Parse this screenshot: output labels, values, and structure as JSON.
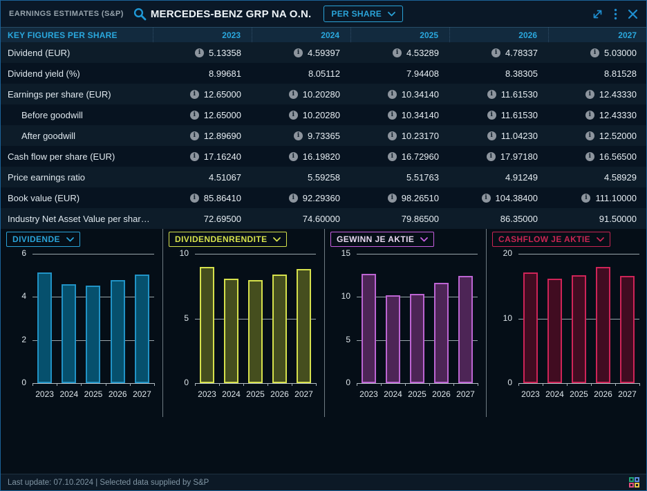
{
  "header": {
    "widget_title": "EARNINGS ESTIMATES (S&P)",
    "instrument": "MERCEDES-BENZ GRP NA O.N.",
    "view_selector": "PER SHARE"
  },
  "table": {
    "header_label": "KEY FIGURES PER SHARE",
    "years": [
      "2023",
      "2024",
      "2025",
      "2026",
      "2027"
    ],
    "rows": [
      {
        "label": "Dividend (EUR)",
        "indent": false,
        "info": true,
        "values": [
          "5.13358",
          "4.59397",
          "4.53289",
          "4.78337",
          "5.03000"
        ]
      },
      {
        "label": "Dividend yield (%)",
        "indent": false,
        "info": false,
        "values": [
          "8.99681",
          "8.05112",
          "7.94408",
          "8.38305",
          "8.81528"
        ]
      },
      {
        "label": "Earnings per share (EUR)",
        "indent": false,
        "info": true,
        "values": [
          "12.65000",
          "10.20280",
          "10.34140",
          "11.61530",
          "12.43330"
        ]
      },
      {
        "label": "Before goodwill",
        "indent": true,
        "info": true,
        "values": [
          "12.65000",
          "10.20280",
          "10.34140",
          "11.61530",
          "12.43330"
        ]
      },
      {
        "label": "After goodwill",
        "indent": true,
        "info": true,
        "values": [
          "12.89690",
          "9.73365",
          "10.23170",
          "11.04230",
          "12.52000"
        ]
      },
      {
        "label": "Cash flow per share (EUR)",
        "indent": false,
        "info": true,
        "values": [
          "17.16240",
          "16.19820",
          "16.72960",
          "17.97180",
          "16.56500"
        ]
      },
      {
        "label": "Price earnings ratio",
        "indent": false,
        "info": false,
        "values": [
          "4.51067",
          "5.59258",
          "5.51763",
          "4.91249",
          "4.58929"
        ]
      },
      {
        "label": "Book value (EUR)",
        "indent": false,
        "info": true,
        "values": [
          "85.86410",
          "92.29360",
          "98.26510",
          "104.38400",
          "111.10000"
        ]
      },
      {
        "label": "Industry Net Asset Value per shar…",
        "indent": false,
        "info": false,
        "values": [
          "72.69500",
          "74.60000",
          "79.86500",
          "86.35000",
          "91.50000"
        ]
      }
    ]
  },
  "chart_data": [
    {
      "type": "bar",
      "title": "DIVIDENDE",
      "categories": [
        "2023",
        "2024",
        "2025",
        "2026",
        "2027"
      ],
      "values": [
        5.13358,
        4.59397,
        4.53289,
        4.78337,
        5.03
      ],
      "ylim": [
        0,
        6
      ],
      "yticks": [
        0,
        2,
        4,
        6
      ],
      "accent": "#2aa3d8",
      "text_color": "#2aa3d8",
      "bar_fill": "#06506d",
      "bar_stroke": "#2193c6",
      "grid": true,
      "legend": "none"
    },
    {
      "type": "bar",
      "title": "DIVIDENDENRENDITE",
      "categories": [
        "2023",
        "2024",
        "2025",
        "2026",
        "2027"
      ],
      "values": [
        8.99681,
        8.05112,
        7.94408,
        8.38305,
        8.81528
      ],
      "ylim": [
        0,
        10
      ],
      "yticks": [
        0,
        5,
        10
      ],
      "accent": "#d6e14c",
      "text_color": "#d6e14c",
      "bar_fill": "#454e1e",
      "bar_stroke": "#d6e14c",
      "grid": true,
      "legend": "none"
    },
    {
      "type": "bar",
      "title": "GEWINN JE AKTIE",
      "categories": [
        "2023",
        "2024",
        "2025",
        "2026",
        "2027"
      ],
      "values": [
        12.65,
        10.2028,
        10.3414,
        11.6153,
        12.4333
      ],
      "ylim": [
        0,
        15
      ],
      "yticks": [
        0,
        5,
        10,
        15
      ],
      "accent": "#c75fe0",
      "text_color": "#e8d9f0",
      "bar_fill": "#4d2556",
      "bar_stroke": "#bd65d3",
      "grid": true,
      "legend": "none"
    },
    {
      "type": "bar",
      "title": "CASHFLOW JE AKTIE",
      "categories": [
        "2023",
        "2024",
        "2025",
        "2026",
        "2027"
      ],
      "values": [
        17.1624,
        16.1982,
        16.7296,
        17.9718,
        16.565
      ],
      "ylim": [
        0,
        20
      ],
      "yticks": [
        0,
        10,
        20
      ],
      "accent": "#c92553",
      "text_color": "#c92553",
      "bar_fill": "#410c21",
      "bar_stroke": "#cf2458",
      "grid": true,
      "legend": "none"
    }
  ],
  "footer": {
    "text": "Last update: 07.10.2024 | Selected data supplied by S&P",
    "link_colors": [
      "#21a377",
      "#5b8de0",
      "#e0507e",
      "#e6c14a"
    ]
  },
  "colors": {
    "accent_cyan": "#2aa3d8",
    "icon_blue": "#1f8fd0",
    "row_light": "#0d1c29",
    "row_dark": "#071320",
    "gridline": "#9aa7ad"
  }
}
